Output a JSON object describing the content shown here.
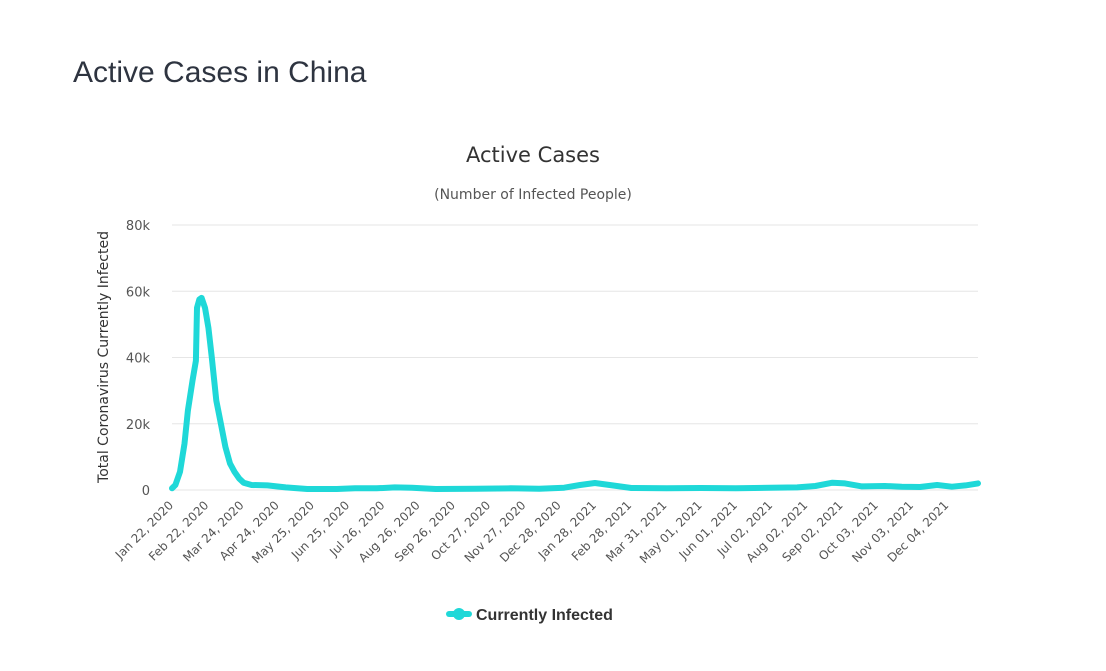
{
  "page": {
    "title": "Active Cases in China"
  },
  "chart_data": {
    "type": "line",
    "title": "Active Cases",
    "subtitle": "(Number of Infected People)",
    "ylabel": "Total Coronavirus Currently Infected",
    "xlabel": "",
    "ylim": [
      0,
      80000
    ],
    "y_ticks": [
      0,
      20000,
      40000,
      60000,
      80000
    ],
    "y_tick_labels": [
      "0",
      "20k",
      "40k",
      "60k",
      "80k"
    ],
    "x_range": [
      "2020-01-22",
      "2021-12-31"
    ],
    "x_tick_dates": [
      "2020-01-22",
      "2020-02-22",
      "2020-03-24",
      "2020-04-24",
      "2020-05-25",
      "2020-06-25",
      "2020-07-26",
      "2020-08-26",
      "2020-09-26",
      "2020-10-27",
      "2020-11-27",
      "2020-12-28",
      "2021-01-28",
      "2021-02-28",
      "2021-03-31",
      "2021-05-01",
      "2021-06-01",
      "2021-07-02",
      "2021-08-02",
      "2021-09-02",
      "2021-10-03",
      "2021-11-03",
      "2021-12-04"
    ],
    "x_tick_labels": [
      "Jan 22, 2020",
      "Feb 22, 2020",
      "Mar 24, 2020",
      "Apr 24, 2020",
      "May 25, 2020",
      "Jun 25, 2020",
      "Jul 26, 2020",
      "Aug 26, 2020",
      "Sep 26, 2020",
      "Oct 27, 2020",
      "Nov 27, 2020",
      "Dec 28, 2020",
      "Jan 28, 2021",
      "Feb 28, 2021",
      "Mar 31, 2021",
      "May 01, 2021",
      "Jun 01, 2021",
      "Jul 02, 2021",
      "Aug 02, 2021",
      "Sep 02, 2021",
      "Oct 03, 2021",
      "Nov 03, 2021",
      "Dec 04, 2021"
    ],
    "grid": true,
    "legend_position": "bottom-center",
    "series": [
      {
        "name": "Currently Infected",
        "color": "#1fd8d8",
        "points": [
          [
            "2020-01-22",
            500
          ],
          [
            "2020-01-25",
            1500
          ],
          [
            "2020-01-29",
            5500
          ],
          [
            "2020-02-02",
            14000
          ],
          [
            "2020-02-05",
            24000
          ],
          [
            "2020-02-09",
            33000
          ],
          [
            "2020-02-12",
            39000
          ],
          [
            "2020-02-13",
            55000
          ],
          [
            "2020-02-15",
            57500
          ],
          [
            "2020-02-17",
            58000
          ],
          [
            "2020-02-20",
            55000
          ],
          [
            "2020-02-23",
            49000
          ],
          [
            "2020-02-26",
            40000
          ],
          [
            "2020-03-01",
            27000
          ],
          [
            "2020-03-05",
            20000
          ],
          [
            "2020-03-09",
            13000
          ],
          [
            "2020-03-13",
            8000
          ],
          [
            "2020-03-17",
            5500
          ],
          [
            "2020-03-21",
            3500
          ],
          [
            "2020-03-25",
            2200
          ],
          [
            "2020-04-01",
            1500
          ],
          [
            "2020-04-15",
            1400
          ],
          [
            "2020-05-01",
            800
          ],
          [
            "2020-05-20",
            300
          ],
          [
            "2020-06-15",
            300
          ],
          [
            "2020-07-01",
            500
          ],
          [
            "2020-07-20",
            500
          ],
          [
            "2020-08-05",
            800
          ],
          [
            "2020-08-20",
            700
          ],
          [
            "2020-09-10",
            300
          ],
          [
            "2020-10-15",
            350
          ],
          [
            "2020-11-15",
            500
          ],
          [
            "2020-12-10",
            400
          ],
          [
            "2021-01-01",
            700
          ],
          [
            "2021-01-15",
            1500
          ],
          [
            "2021-01-28",
            2100
          ],
          [
            "2021-02-10",
            1500
          ],
          [
            "2021-03-01",
            600
          ],
          [
            "2021-04-01",
            500
          ],
          [
            "2021-05-01",
            600
          ],
          [
            "2021-06-01",
            500
          ],
          [
            "2021-07-01",
            700
          ],
          [
            "2021-07-25",
            800
          ],
          [
            "2021-08-10",
            1200
          ],
          [
            "2021-08-25",
            2200
          ],
          [
            "2021-09-05",
            2000
          ],
          [
            "2021-09-20",
            1100
          ],
          [
            "2021-10-10",
            1200
          ],
          [
            "2021-10-25",
            1000
          ],
          [
            "2021-11-10",
            900
          ],
          [
            "2021-11-25",
            1500
          ],
          [
            "2021-12-08",
            1000
          ],
          [
            "2021-12-20",
            1400
          ],
          [
            "2021-12-31",
            2000
          ]
        ]
      }
    ]
  }
}
